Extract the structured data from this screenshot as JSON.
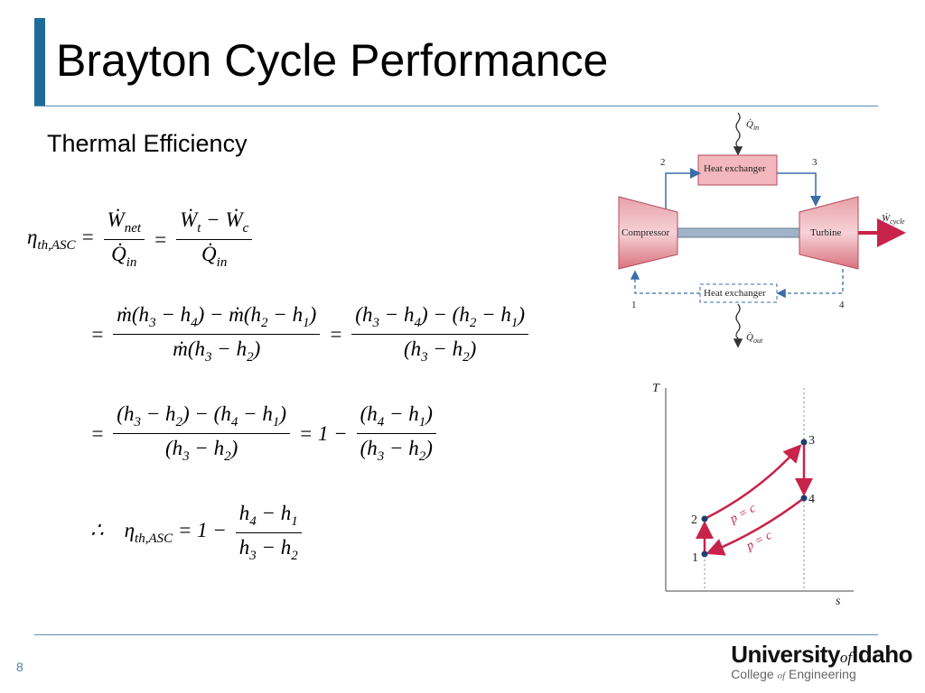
{
  "title": "Brayton Cycle Performance",
  "subtitle": "Thermal Efficiency",
  "page_number": "8",
  "logo": {
    "university": "University",
    "of": "of",
    "idaho": "Idaho",
    "college": "College",
    "of2": "of",
    "engineering": "Engineering"
  },
  "equations": [
    [
      [
        "η",
        {
          "sub": "th,ASC"
        },
        " = "
      ],
      {
        "num": [
          "Ẇ",
          {
            "sub": "net"
          }
        ],
        "den": [
          "Q̇",
          {
            "sub": "in"
          }
        ]
      },
      [
        " = "
      ],
      {
        "num": [
          "Ẇ",
          {
            "sub": "t"
          },
          " − ",
          "Ẇ",
          {
            "sub": "c"
          }
        ],
        "den": [
          "Q̇",
          {
            "sub": "in"
          }
        ]
      }
    ],
    [
      [
        "= "
      ],
      {
        "num": [
          "ṁ(h",
          {
            "sub": "3"
          },
          " − h",
          {
            "sub": "4"
          },
          ") − ṁ(h",
          {
            "sub": "2"
          },
          " − h",
          {
            "sub": "1"
          },
          ")"
        ],
        "den": [
          "ṁ(h",
          {
            "sub": "3"
          },
          " − h",
          {
            "sub": "2"
          },
          ")"
        ]
      },
      [
        " = "
      ],
      {
        "num": [
          "(h",
          {
            "sub": "3"
          },
          " − h",
          {
            "sub": "4"
          },
          ") − (h",
          {
            "sub": "2"
          },
          " − h",
          {
            "sub": "1"
          },
          ")"
        ],
        "den": [
          "(h",
          {
            "sub": "3"
          },
          " − h",
          {
            "sub": "2"
          },
          ")"
        ]
      }
    ],
    [
      [
        "= "
      ],
      {
        "num": [
          "(h",
          {
            "sub": "3"
          },
          " − h",
          {
            "sub": "2"
          },
          ") − (h",
          {
            "sub": "4"
          },
          " − h",
          {
            "sub": "1"
          },
          ")"
        ],
        "den": [
          "(h",
          {
            "sub": "3"
          },
          " − h",
          {
            "sub": "2"
          },
          ")"
        ]
      },
      [
        " = 1 − "
      ],
      {
        "num": [
          "(h",
          {
            "sub": "4"
          },
          " − h",
          {
            "sub": "1"
          },
          ")"
        ],
        "den": [
          "(h",
          {
            "sub": "3"
          },
          " − h",
          {
            "sub": "2"
          },
          ")"
        ]
      }
    ],
    [
      [
        "∴    η",
        {
          "sub": "th,ASC"
        },
        " = 1 − "
      ],
      {
        "num": [
          "h",
          {
            "sub": "4"
          },
          " − h",
          {
            "sub": "1"
          }
        ],
        "den": [
          "h",
          {
            "sub": "3"
          },
          " − h",
          {
            "sub": "2"
          }
        ]
      }
    ]
  ],
  "diagram": {
    "q_in": [
      "Q̇",
      {
        "sub": "in"
      }
    ],
    "heat_exchanger_top": [
      "Heat exchanger"
    ],
    "state_2": [
      "2"
    ],
    "state_3": [
      "3"
    ],
    "compressor": [
      "Compressor"
    ],
    "turbine": [
      "Turbine"
    ],
    "w_cycle": [
      "Ẇ",
      {
        "sub": "cycle"
      }
    ],
    "state_1": [
      "1"
    ],
    "state_4": [
      "4"
    ],
    "heat_exchanger_bottom": [
      "Heat exchanger"
    ],
    "q_out": [
      "Q̇",
      {
        "sub": "out"
      }
    ]
  },
  "ts_diagram": {
    "y_label": [
      "T"
    ],
    "x_label": [
      "s"
    ],
    "point_1": [
      "1"
    ],
    "point_2": [
      "2"
    ],
    "point_3": [
      "3"
    ],
    "point_4": [
      "4"
    ],
    "isobar_high": [
      "p = c"
    ],
    "isobar_low": [
      "p = c"
    ]
  }
}
